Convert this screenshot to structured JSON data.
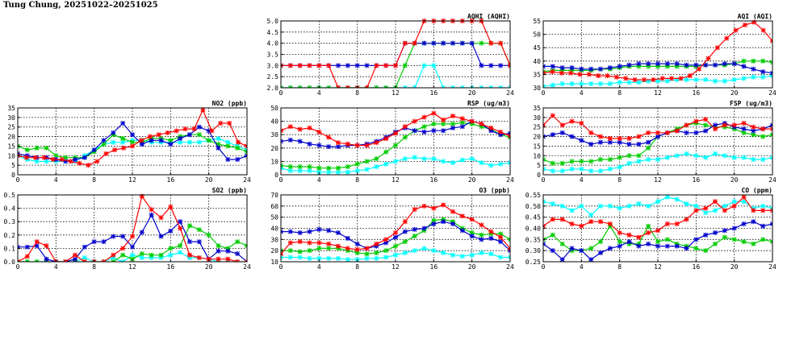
{
  "page": {
    "title": "Tung Chung, 20251022–20251025"
  },
  "chart_data": [
    {
      "id": "aqhi",
      "type": "line",
      "title": "AQHI (AQHI)",
      "xlim": [
        0,
        24
      ],
      "xticks": [
        0,
        4,
        8,
        12,
        16,
        20,
        24
      ],
      "ylim": [
        2,
        5
      ],
      "yticks": [
        2.0,
        2.5,
        3.0,
        3.5,
        4.0,
        4.5,
        5.0
      ],
      "ydecimals": 1,
      "grid": true,
      "series": [
        {
          "color": "#00ffff",
          "values": [
            2,
            2,
            2,
            2,
            2,
            2,
            2,
            2,
            2,
            2,
            2,
            2,
            2,
            2,
            2,
            3,
            3,
            2,
            2,
            2,
            2,
            2,
            2,
            2,
            2
          ]
        },
        {
          "color": "#00cc00",
          "values": [
            2,
            2,
            2,
            2,
            2,
            2,
            2,
            2,
            2,
            2,
            2,
            2,
            2,
            3,
            4,
            4,
            4,
            4,
            4,
            4,
            4,
            4,
            4,
            4,
            3
          ]
        },
        {
          "color": "#0000cc",
          "values": [
            3,
            3,
            3,
            3,
            3,
            3,
            3,
            3,
            3,
            3,
            3,
            3,
            3,
            4,
            4,
            4,
            4,
            4,
            4,
            4,
            4,
            3,
            3,
            3,
            3
          ]
        },
        {
          "color": "#ff0000",
          "values": [
            3,
            3,
            3,
            3,
            3,
            3,
            2,
            2,
            2,
            2,
            3,
            3,
            3,
            4,
            4,
            5,
            5,
            5,
            5,
            5,
            5,
            5,
            4,
            4,
            3
          ]
        }
      ]
    },
    {
      "id": "aqi",
      "type": "line",
      "title": "AQI (AQI)",
      "xlim": [
        0,
        24
      ],
      "xticks": [
        0,
        4,
        8,
        12,
        16,
        20,
        24
      ],
      "ylim": [
        30,
        55
      ],
      "yticks": [
        30,
        35,
        40,
        45,
        50,
        55
      ],
      "ydecimals": 0,
      "grid": true,
      "series": [
        {
          "color": "#00ffff",
          "values": [
            30.5,
            31,
            31.5,
            31.5,
            31.5,
            31.5,
            31.5,
            31.5,
            32,
            32,
            32,
            32.5,
            32.5,
            32.5,
            33,
            33,
            33,
            33,
            32.5,
            32.5,
            33,
            33.5,
            34,
            34,
            34.5
          ]
        },
        {
          "color": "#00cc00",
          "values": [
            36,
            36.5,
            36.5,
            36.5,
            36.5,
            36.5,
            37,
            37,
            37.5,
            38,
            38,
            38,
            38,
            38,
            38,
            38,
            38,
            38.5,
            38.5,
            38.5,
            39,
            40,
            40,
            40,
            39.5
          ]
        },
        {
          "color": "#0000cc",
          "values": [
            38,
            38,
            37.5,
            37.5,
            37,
            37,
            37,
            37.5,
            38,
            38.5,
            39,
            39,
            39,
            39,
            39,
            38.5,
            38.5,
            38.5,
            38.5,
            39,
            39,
            38,
            37,
            36,
            35.5
          ]
        },
        {
          "color": "#ff0000",
          "values": [
            35.5,
            36,
            35.5,
            35.5,
            35,
            35,
            34.5,
            34.5,
            34,
            33.5,
            33,
            33,
            33,
            33.5,
            33.5,
            33.5,
            34.5,
            37,
            41,
            45,
            48.5,
            51.5,
            53.5,
            54.5,
            51.5,
            47.5
          ]
        }
      ]
    },
    {
      "id": "no2",
      "type": "line",
      "title": "NO2 (ppb)",
      "xlim": [
        0,
        24
      ],
      "xticks": [
        0,
        4,
        8,
        12,
        16,
        20,
        24
      ],
      "ylim": [
        0,
        35
      ],
      "yticks": [
        0,
        5,
        10,
        15,
        20,
        25,
        30,
        35
      ],
      "ydecimals": 0,
      "grid": true,
      "series": [
        {
          "color": "#00ffff",
          "values": [
            10,
            8,
            7,
            7,
            7,
            7,
            7,
            10,
            13,
            16,
            17,
            17,
            18,
            18,
            17,
            17,
            17,
            17,
            17,
            17,
            18,
            19,
            17,
            15,
            13
          ]
        },
        {
          "color": "#00cc00",
          "values": [
            15,
            13,
            14,
            14,
            10,
            9,
            9,
            9,
            12,
            16,
            21,
            19,
            17,
            17,
            19,
            19,
            18,
            20,
            21,
            21,
            18,
            16,
            15,
            14,
            12
          ]
        },
        {
          "color": "#0000cc",
          "values": [
            11,
            10,
            9,
            9,
            8,
            7,
            8,
            9,
            13,
            18,
            22,
            27,
            21,
            16,
            18,
            18,
            16,
            19,
            21,
            25,
            23,
            14,
            8,
            8,
            10
          ]
        },
        {
          "color": "#ff0000",
          "values": [
            10,
            9,
            9,
            9,
            8,
            8,
            7,
            6,
            5,
            7,
            11,
            13,
            14,
            15,
            18,
            20,
            21,
            22,
            23,
            24,
            24,
            34,
            23,
            27,
            27,
            17,
            15
          ]
        }
      ]
    },
    {
      "id": "rsp",
      "type": "line",
      "title": "RSP (ug/m3)",
      "xlim": [
        0,
        24
      ],
      "xticks": [
        0,
        4,
        8,
        12,
        16,
        20,
        24
      ],
      "ylim": [
        0,
        50
      ],
      "yticks": [
        0,
        10,
        20,
        30,
        40,
        50
      ],
      "ydecimals": 0,
      "grid": true,
      "series": [
        {
          "color": "#00ffff",
          "values": [
            5,
            3,
            3,
            3,
            2,
            2,
            2,
            2,
            3,
            4,
            6,
            8,
            10,
            12,
            13,
            12,
            12,
            10,
            9,
            11,
            12,
            9,
            7,
            8,
            9
          ]
        },
        {
          "color": "#00cc00",
          "values": [
            7,
            6,
            6,
            6,
            5,
            5,
            5,
            6,
            8,
            10,
            12,
            17,
            22,
            28,
            33,
            36,
            38,
            38,
            38,
            39,
            38,
            36,
            34,
            30,
            28
          ]
        },
        {
          "color": "#0000cc",
          "values": [
            25,
            26,
            25,
            23,
            22,
            21,
            21,
            22,
            22,
            23,
            25,
            28,
            32,
            35,
            33,
            32,
            33,
            33,
            35,
            36,
            40,
            38,
            33,
            30,
            31
          ]
        },
        {
          "color": "#ff0000",
          "values": [
            33,
            36,
            34,
            35,
            32,
            28,
            24,
            23,
            22,
            22,
            24,
            27,
            31,
            36,
            40,
            43,
            46,
            41,
            44,
            42,
            40,
            38,
            35,
            32,
            29
          ]
        }
      ]
    },
    {
      "id": "fsp",
      "type": "line",
      "title": "FSP (ug/m3)",
      "xlim": [
        0,
        24
      ],
      "xticks": [
        0,
        4,
        8,
        12,
        16,
        20,
        24
      ],
      "ylim": [
        0,
        35
      ],
      "yticks": [
        0,
        5,
        10,
        15,
        20,
        25,
        30,
        35
      ],
      "ydecimals": 0,
      "grid": true,
      "series": [
        {
          "color": "#00ffff",
          "values": [
            3,
            2,
            2,
            3,
            3,
            2,
            2,
            3,
            4,
            6,
            7,
            8,
            8,
            9,
            10,
            11,
            10,
            9,
            11,
            10,
            9,
            9,
            8,
            8,
            9
          ]
        },
        {
          "color": "#00cc00",
          "values": [
            8,
            6,
            6,
            7,
            7,
            7,
            8,
            8,
            9,
            10,
            10,
            14,
            20,
            22,
            24,
            26,
            27,
            26,
            25,
            25,
            24,
            22,
            21,
            20,
            21
          ]
        },
        {
          "color": "#0000cc",
          "values": [
            20,
            21,
            22,
            20,
            18,
            16,
            17,
            17,
            17,
            16,
            16,
            17,
            20,
            22,
            23,
            22,
            22,
            23,
            26,
            27,
            25,
            24,
            23,
            24,
            26
          ]
        },
        {
          "color": "#ff0000",
          "values": [
            26,
            31,
            26,
            28,
            27,
            22,
            20,
            19,
            19,
            19,
            20,
            22,
            22,
            22,
            23,
            26,
            28,
            29,
            24,
            26,
            26,
            27,
            25,
            24,
            24
          ]
        }
      ]
    },
    {
      "id": "so2",
      "type": "line",
      "title": "SO2 (ppb)",
      "xlim": [
        0,
        24
      ],
      "xticks": [
        0,
        4,
        8,
        12,
        16,
        20,
        24
      ],
      "ylim": [
        0,
        0.5
      ],
      "yticks": [
        0.0,
        0.1,
        0.2,
        0.3,
        0.4,
        0.5
      ],
      "ydecimals": 1,
      "grid": true,
      "series": [
        {
          "color": "#00ffff",
          "values": [
            0,
            0,
            0,
            0,
            0,
            0,
            0,
            0.03,
            0,
            0,
            0.03,
            0,
            0.05,
            0.03,
            0.03,
            0.03,
            0.05,
            0.07,
            0.03,
            0.03,
            0.02,
            0,
            0,
            0,
            0
          ]
        },
        {
          "color": "#00cc00",
          "values": [
            0,
            0,
            0,
            0,
            0,
            0,
            0,
            0,
            0,
            0,
            0,
            0.05,
            0.02,
            0.06,
            0.05,
            0.05,
            0.1,
            0.12,
            0.27,
            0.24,
            0.2,
            0.12,
            0.1,
            0.15,
            0.12
          ]
        },
        {
          "color": "#0000cc",
          "values": [
            0.11,
            0.11,
            0.12,
            0.02,
            0,
            0,
            0.02,
            0.11,
            0.15,
            0.15,
            0.19,
            0.19,
            0.11,
            0.22,
            0.35,
            0.19,
            0.23,
            0.3,
            0.15,
            0.15,
            0.02,
            0.08,
            0.08,
            0.06,
            0
          ]
        },
        {
          "color": "#ff0000",
          "values": [
            0,
            0.04,
            0.15,
            0.12,
            0,
            0,
            0.05,
            0,
            0,
            0,
            0.05,
            0.1,
            0.19,
            0.49,
            0.39,
            0.33,
            0.41,
            0.25,
            0.05,
            0.03,
            0.02,
            0.02,
            0.02,
            0,
            0
          ]
        }
      ]
    },
    {
      "id": "o3",
      "type": "line",
      "title": "O3 (ppb)",
      "xlim": [
        0,
        24
      ],
      "xticks": [
        0,
        4,
        8,
        12,
        16,
        20,
        24
      ],
      "ylim": [
        10,
        70
      ],
      "yticks": [
        10,
        20,
        30,
        40,
        50,
        60,
        70
      ],
      "ydecimals": 0,
      "grid": true,
      "series": [
        {
          "color": "#00ffff",
          "values": [
            14,
            14,
            14,
            13,
            13,
            13,
            13,
            12,
            12,
            13,
            13,
            14,
            16,
            18,
            20,
            22,
            20,
            18,
            16,
            15,
            16,
            18,
            17,
            14,
            14
          ]
        },
        {
          "color": "#00cc00",
          "values": [
            20,
            20,
            19,
            20,
            22,
            22,
            22,
            20,
            18,
            17,
            18,
            20,
            24,
            28,
            33,
            38,
            47,
            48,
            46,
            40,
            36,
            34,
            35,
            35,
            30
          ]
        },
        {
          "color": "#0000cc",
          "values": [
            37,
            37,
            36,
            37,
            39,
            38,
            36,
            31,
            26,
            22,
            24,
            27,
            32,
            37,
            39,
            40,
            44,
            46,
            44,
            38,
            33,
            30,
            31,
            28,
            20
          ]
        },
        {
          "color": "#ff0000",
          "values": [
            17,
            27,
            28,
            27,
            27,
            26,
            24,
            22,
            21,
            22,
            26,
            30,
            36,
            46,
            57,
            60,
            58,
            61,
            55,
            51,
            48,
            43,
            37,
            32,
            22
          ]
        }
      ]
    },
    {
      "id": "co",
      "type": "line",
      "title": "CO (ppm)",
      "xlim": [
        0,
        24
      ],
      "xticks": [
        0,
        4,
        8,
        12,
        16,
        20,
        24
      ],
      "ylim": [
        0.25,
        0.55
      ],
      "yticks": [
        0.25,
        0.3,
        0.35,
        0.4,
        0.45,
        0.5,
        0.55
      ],
      "ydecimals": 2,
      "grid": true,
      "series": [
        {
          "color": "#00ffff",
          "values": [
            0.52,
            0.51,
            0.5,
            0.48,
            0.5,
            0.46,
            0.5,
            0.5,
            0.49,
            0.5,
            0.51,
            0.5,
            0.52,
            0.54,
            0.53,
            0.51,
            0.5,
            0.47,
            0.48,
            0.5,
            0.52,
            0.52,
            0.49,
            0.5,
            0.49
          ]
        },
        {
          "color": "#00cc00",
          "values": [
            0.35,
            0.37,
            0.33,
            0.3,
            0.3,
            0.31,
            0.34,
            0.41,
            0.34,
            0.33,
            0.33,
            0.41,
            0.34,
            0.35,
            0.33,
            0.32,
            0.31,
            0.3,
            0.33,
            0.36,
            0.35,
            0.34,
            0.33,
            0.35,
            0.34
          ]
        },
        {
          "color": "#0000cc",
          "values": [
            0.33,
            0.3,
            0.26,
            0.31,
            0.3,
            0.26,
            0.29,
            0.31,
            0.32,
            0.34,
            0.32,
            0.33,
            0.32,
            0.32,
            0.32,
            0.31,
            0.35,
            0.37,
            0.38,
            0.39,
            0.4,
            0.42,
            0.43,
            0.41,
            0.42
          ]
        },
        {
          "color": "#ff0000",
          "values": [
            0.41,
            0.44,
            0.44,
            0.42,
            0.41,
            0.43,
            0.43,
            0.42,
            0.38,
            0.37,
            0.36,
            0.38,
            0.39,
            0.42,
            0.42,
            0.44,
            0.48,
            0.49,
            0.52,
            0.48,
            0.5,
            0.54,
            0.48,
            0.48,
            0.48
          ]
        }
      ]
    }
  ]
}
